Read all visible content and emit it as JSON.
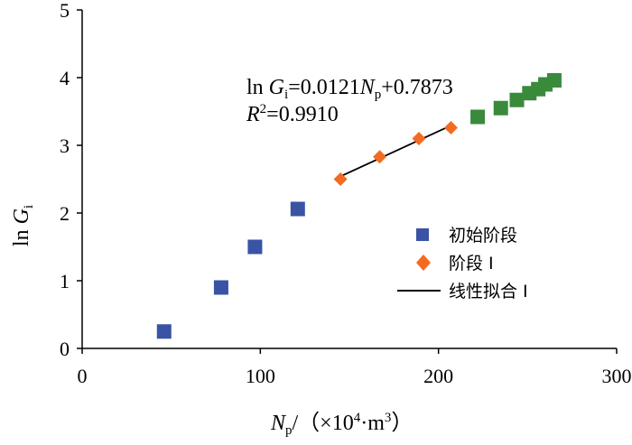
{
  "chart_data": {
    "type": "scatter",
    "x_axis": {
      "min": 0,
      "max": 300,
      "ticks": [
        0,
        100,
        200,
        300
      ]
    },
    "y_axis": {
      "min": 0,
      "max": 5,
      "ticks": [
        0,
        1,
        2,
        3,
        4,
        5
      ]
    },
    "xlabel": {
      "var": "N",
      "sub": "p",
      "unit": "/（×10",
      "sup": "4",
      "unit_end": "·m",
      "sup2": "3",
      "close": "）"
    },
    "ylabel": {
      "prefix": "ln ",
      "var": "G",
      "sub": "i"
    },
    "series": [
      {
        "name": "初始阶段",
        "marker": "square",
        "color": "#3a53a4",
        "points": [
          [
            46,
            0.25
          ],
          [
            78,
            0.9
          ],
          [
            97,
            1.5
          ],
          [
            121,
            2.06
          ]
        ]
      },
      {
        "name": "阶段 I",
        "marker": "diamond",
        "color": "#f26b21",
        "points": [
          [
            145,
            2.5
          ],
          [
            167,
            2.83
          ],
          [
            189,
            3.1
          ],
          [
            207,
            3.26
          ]
        ]
      },
      {
        "marker": "square",
        "color": "#3a8a3c",
        "points": [
          [
            222,
            3.42
          ],
          [
            235,
            3.55
          ],
          [
            244,
            3.67
          ],
          [
            251,
            3.77
          ],
          [
            256,
            3.83
          ],
          [
            260,
            3.9
          ],
          [
            265,
            3.96
          ]
        ]
      }
    ],
    "fit": {
      "name": "线性拟合 I",
      "color": "#000000",
      "x_range": [
        145,
        207
      ],
      "slope": 0.0121,
      "intercept": 0.7873
    },
    "equation": {
      "line1": {
        "prefix": "ln ",
        "var": "G",
        "sub": "i",
        "mid": "=0.0121",
        "var2": "N",
        "sub2": "p",
        "end": "+0.7873"
      },
      "line2": {
        "var": "R",
        "sup": "2",
        "end": "=0.9910"
      }
    }
  }
}
